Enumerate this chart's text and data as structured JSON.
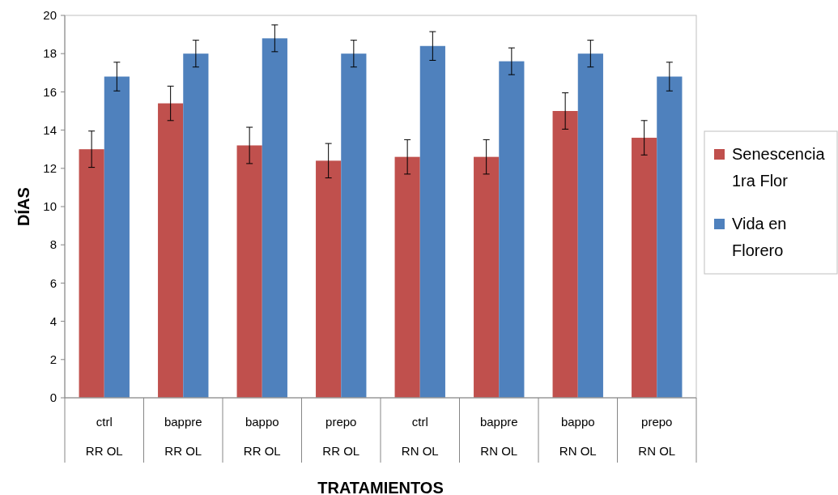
{
  "chart_data": {
    "type": "bar",
    "xlabel": "TRATAMIENTOS",
    "ylabel": "DÍAS",
    "categories": [
      "ctrl\nRR OL",
      "bappre\nRR OL",
      "bappo\nRR OL",
      "prepo\nRR OL",
      "ctrl\nRN OL",
      "bappre\nRN OL",
      "bappo\nRN OL",
      "prepo\nRN OL"
    ],
    "series": [
      {
        "name": "Senescencia 1ra Flor",
        "color": "#c0504d",
        "values": [
          13,
          15.4,
          13.2,
          12.4,
          12.6,
          12.6,
          15,
          13.6
        ],
        "errors": [
          0.95,
          0.9,
          0.95,
          0.9,
          0.9,
          0.9,
          0.95,
          0.9
        ]
      },
      {
        "name": "Vida en Florero",
        "color": "#4f81bd",
        "values": [
          16.8,
          18,
          18.8,
          18,
          18.4,
          17.6,
          18,
          16.8
        ],
        "errors": [
          0.75,
          0.7,
          0.7,
          0.7,
          0.75,
          0.7,
          0.7,
          0.75
        ]
      }
    ],
    "ylim": [
      0,
      20
    ],
    "yticks": [
      0,
      2,
      4,
      6,
      8,
      10,
      12,
      14,
      16,
      18,
      20
    ],
    "legend": "right"
  }
}
